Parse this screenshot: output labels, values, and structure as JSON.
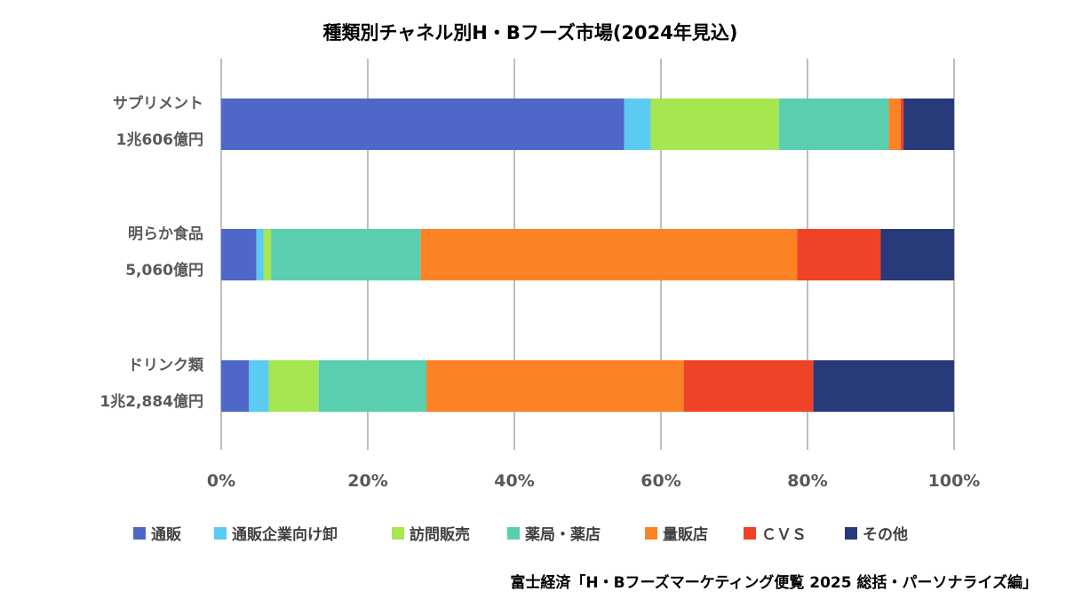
{
  "chart_data": {
    "type": "bar",
    "orientation": "horizontal",
    "stacked": "percent",
    "title": "種類別チャネル別H・Bフーズ市場(2024年見込)",
    "categories": [
      {
        "name": "サプリメント",
        "size": "1兆606億円"
      },
      {
        "name": "明らか食品",
        "size": "5,060億円"
      },
      {
        "name": "ドリンク類",
        "size": "1兆2,884億円"
      }
    ],
    "series": [
      {
        "name": "通販",
        "color": "#4f67c9",
        "values": [
          55.0,
          4.8,
          3.8
        ]
      },
      {
        "name": "通販企業向け卸",
        "color": "#5ccbf2",
        "values": [
          3.6,
          1.0,
          2.7
        ]
      },
      {
        "name": "訪問販売",
        "color": "#a6e650",
        "values": [
          17.5,
          1.0,
          6.8
        ]
      },
      {
        "name": "薬局・薬店",
        "color": "#5acfb0",
        "values": [
          15.0,
          20.4,
          14.7
        ]
      },
      {
        "name": "量販店",
        "color": "#fb8326",
        "values": [
          1.6,
          51.4,
          35.1
        ]
      },
      {
        "name": "ＣＶＳ",
        "color": "#ef4327",
        "values": [
          0.4,
          11.4,
          17.7
        ]
      },
      {
        "name": "その他",
        "color": "#283a7a",
        "values": [
          6.9,
          10.0,
          19.2
        ]
      }
    ],
    "xlim": [
      0,
      100
    ],
    "xticks": [
      "0%",
      "20%",
      "40%",
      "60%",
      "80%",
      "100%"
    ],
    "grid": true,
    "legend_position": "bottom"
  },
  "source_note": "富士経済「H・Bフーズマーケティング便覧 2025 総括・パーソナライズ編」"
}
